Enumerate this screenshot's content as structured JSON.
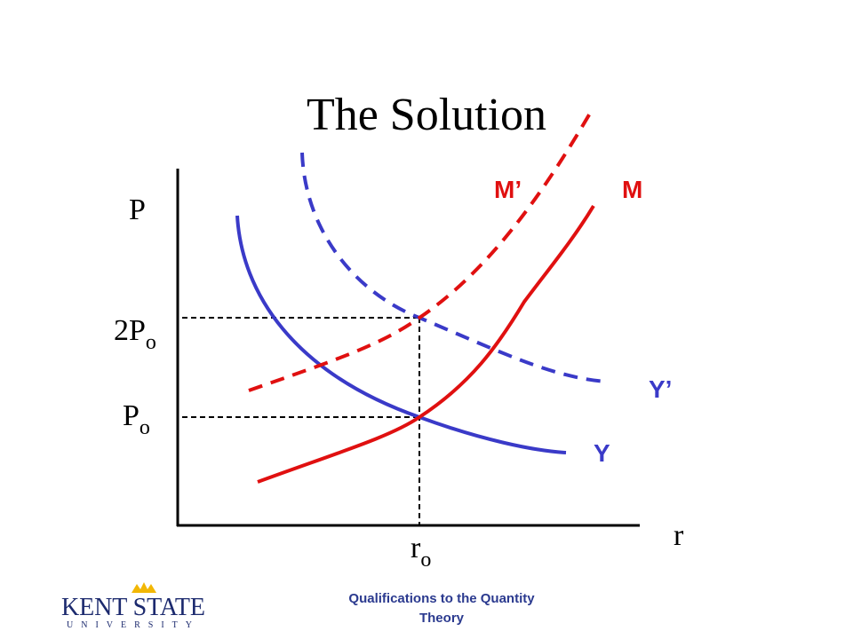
{
  "title": "The Solution",
  "axes": {
    "y_label": "P",
    "x_label": "r"
  },
  "levels": [
    {
      "text": "2P",
      "subscript": "o"
    },
    {
      "text": "P",
      "subscript": "o"
    }
  ],
  "x_level": {
    "text": "r",
    "subscript": "o"
  },
  "curves": [
    {
      "label": "M’"
    },
    {
      "label": "M"
    },
    {
      "label": "Y’"
    },
    {
      "label": "Y"
    }
  ],
  "footer": {
    "lines": [
      "Qualifications to the Quantity",
      "Theory"
    ]
  },
  "logo": {
    "name": "KENT STATE",
    "sub": "UNIVERSITY"
  }
}
